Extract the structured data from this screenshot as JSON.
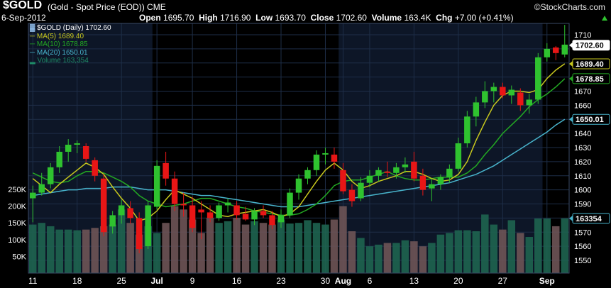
{
  "header": {
    "symbol": "$GOLD",
    "description": "(Gold - Spot Price (EOD)) CME",
    "watermark": "©StockCharts.com",
    "date": "6-Sep-2012",
    "open_label": "Open",
    "open": "1695.70",
    "high_label": "High",
    "high": "1716.90",
    "low_label": "Low",
    "low": "1693.70",
    "close_label": "Close",
    "close": "1702.60",
    "volume_label": "Volume",
    "volume": "163.4K",
    "chg_label": "Chg",
    "chg": "+7.00 (+0.41%)"
  },
  "legend": {
    "price": "$GOLD (Daily) 1702.60",
    "ma5": "MA(5) 1689.40",
    "ma10": "MA(10) 1678.85",
    "ma20": "MA(20) 1650.01",
    "volume": "Volume 163,354"
  },
  "colors": {
    "up": "#2fc22f",
    "down": "#e81616",
    "ma5": "#c8c81e",
    "ma10": "#23a823",
    "ma20": "#48b4cc",
    "volume_up": "#1e6450",
    "volume_down": "#6e5456",
    "grid": "#1e2e48",
    "panel_light": "#0d1627",
    "panel_dark": "#000000"
  },
  "chart_data": {
    "type": "candlestick",
    "price_axis": {
      "range": [
        1545,
        1720
      ],
      "ticks": [
        1550,
        1560,
        1570,
        1580,
        1590,
        1600,
        1610,
        1620,
        1630,
        1640,
        1650,
        1660,
        1670,
        1680,
        1690,
        1700,
        1710
      ]
    },
    "volume_axis": {
      "range": [
        0,
        300000
      ],
      "ticks": [
        "50K",
        "100K",
        "150K",
        "200K",
        "250K"
      ],
      "tick_values": [
        50000,
        100000,
        150000,
        200000,
        250000
      ]
    },
    "x_axis": {
      "ticks": [
        {
          "label": "11",
          "i": 0
        },
        {
          "label": "18",
          "i": 5
        },
        {
          "label": "25",
          "i": 10
        },
        {
          "label": "Jul",
          "i": 14
        },
        {
          "label": "9",
          "i": 18
        },
        {
          "label": "16",
          "i": 23
        },
        {
          "label": "23",
          "i": 28
        },
        {
          "label": "30",
          "i": 33
        },
        {
          "label": "Aug",
          "i": 35
        },
        {
          "label": "6",
          "i": 38
        },
        {
          "label": "13",
          "i": 43
        },
        {
          "label": "20",
          "i": 48
        },
        {
          "label": "27",
          "i": 53
        },
        {
          "label": "Sep",
          "i": 58
        }
      ]
    },
    "badges": [
      {
        "text": "1702.60",
        "value": 1702.6,
        "color": "#ffffff",
        "fill": "#ffffff",
        "textcolor": "#000000"
      },
      {
        "text": "1689.40",
        "value": 1689.4,
        "color": "#c8c81e",
        "fill": "#000000",
        "textcolor": "#ffffff"
      },
      {
        "text": "1678.85",
        "value": 1678.85,
        "color": "#23a823",
        "fill": "#000000",
        "textcolor": "#ffffff"
      },
      {
        "text": "1650.01",
        "value": 1650.01,
        "color": "#48b4cc",
        "fill": "#000000",
        "textcolor": "#ffffff"
      },
      {
        "text": "163354",
        "value": 163354,
        "color": "#48b4cc",
        "fill": "#000000",
        "textcolor": "#ffffff",
        "axis": "volume"
      }
    ],
    "candles": [
      {
        "o": 1594,
        "h": 1603,
        "l": 1577,
        "c": 1598
      },
      {
        "o": 1598,
        "h": 1612,
        "l": 1596,
        "c": 1604
      },
      {
        "o": 1604,
        "h": 1619,
        "l": 1601,
        "c": 1616
      },
      {
        "o": 1616,
        "h": 1631,
        "l": 1612,
        "c": 1627
      },
      {
        "o": 1627,
        "h": 1636,
        "l": 1620,
        "c": 1632
      },
      {
        "o": 1632,
        "h": 1635,
        "l": 1626,
        "c": 1633
      },
      {
        "o": 1631,
        "h": 1633,
        "l": 1620,
        "c": 1622
      },
      {
        "o": 1621,
        "h": 1623,
        "l": 1606,
        "c": 1610
      },
      {
        "o": 1608,
        "h": 1611,
        "l": 1567,
        "c": 1570
      },
      {
        "o": 1574,
        "h": 1585,
        "l": 1569,
        "c": 1582
      },
      {
        "o": 1582,
        "h": 1593,
        "l": 1576,
        "c": 1589
      },
      {
        "o": 1587,
        "h": 1592,
        "l": 1576,
        "c": 1580
      },
      {
        "o": 1580,
        "h": 1584,
        "l": 1555,
        "c": 1558
      },
      {
        "o": 1560,
        "h": 1592,
        "l": 1558,
        "c": 1589
      },
      {
        "o": 1588,
        "h": 1621,
        "l": 1586,
        "c": 1617
      },
      {
        "o": 1619,
        "h": 1627,
        "l": 1603,
        "c": 1608
      },
      {
        "o": 1608,
        "h": 1613,
        "l": 1585,
        "c": 1590
      },
      {
        "o": 1590,
        "h": 1598,
        "l": 1581,
        "c": 1589
      },
      {
        "o": 1589,
        "h": 1595,
        "l": 1570,
        "c": 1573
      },
      {
        "o": 1586,
        "h": 1592,
        "l": 1565,
        "c": 1584
      },
      {
        "o": 1584,
        "h": 1589,
        "l": 1577,
        "c": 1580
      },
      {
        "o": 1580,
        "h": 1591,
        "l": 1578,
        "c": 1589
      },
      {
        "o": 1589,
        "h": 1594,
        "l": 1584,
        "c": 1591
      },
      {
        "o": 1589,
        "h": 1592,
        "l": 1579,
        "c": 1582
      },
      {
        "o": 1583,
        "h": 1588,
        "l": 1578,
        "c": 1579
      },
      {
        "o": 1579,
        "h": 1587,
        "l": 1575,
        "c": 1585
      },
      {
        "o": 1585,
        "h": 1589,
        "l": 1580,
        "c": 1582
      },
      {
        "o": 1582,
        "h": 1585,
        "l": 1572,
        "c": 1575
      },
      {
        "o": 1577,
        "h": 1586,
        "l": 1573,
        "c": 1582
      },
      {
        "o": 1582,
        "h": 1601,
        "l": 1580,
        "c": 1598
      },
      {
        "o": 1598,
        "h": 1611,
        "l": 1593,
        "c": 1608
      },
      {
        "o": 1608,
        "h": 1616,
        "l": 1604,
        "c": 1614
      },
      {
        "o": 1614,
        "h": 1628,
        "l": 1610,
        "c": 1625
      },
      {
        "o": 1625,
        "h": 1630,
        "l": 1618,
        "c": 1626
      },
      {
        "o": 1625,
        "h": 1630,
        "l": 1615,
        "c": 1620
      },
      {
        "o": 1614,
        "h": 1619,
        "l": 1597,
        "c": 1599
      },
      {
        "o": 1600,
        "h": 1604,
        "l": 1588,
        "c": 1592
      },
      {
        "o": 1594,
        "h": 1609,
        "l": 1592,
        "c": 1605
      },
      {
        "o": 1605,
        "h": 1614,
        "l": 1602,
        "c": 1610
      },
      {
        "o": 1610,
        "h": 1616,
        "l": 1606,
        "c": 1614
      },
      {
        "o": 1613,
        "h": 1620,
        "l": 1609,
        "c": 1612
      },
      {
        "o": 1612,
        "h": 1619,
        "l": 1608,
        "c": 1616
      },
      {
        "o": 1616,
        "h": 1623,
        "l": 1612,
        "c": 1618
      },
      {
        "o": 1620,
        "h": 1627,
        "l": 1606,
        "c": 1608
      },
      {
        "o": 1610,
        "h": 1615,
        "l": 1596,
        "c": 1600
      },
      {
        "o": 1601,
        "h": 1608,
        "l": 1592,
        "c": 1604
      },
      {
        "o": 1604,
        "h": 1611,
        "l": 1600,
        "c": 1609
      },
      {
        "o": 1609,
        "h": 1618,
        "l": 1605,
        "c": 1615
      },
      {
        "o": 1615,
        "h": 1637,
        "l": 1613,
        "c": 1633
      },
      {
        "o": 1633,
        "h": 1656,
        "l": 1630,
        "c": 1652
      },
      {
        "o": 1652,
        "h": 1666,
        "l": 1645,
        "c": 1662
      },
      {
        "o": 1662,
        "h": 1677,
        "l": 1658,
        "c": 1670
      },
      {
        "o": 1670,
        "h": 1676,
        "l": 1662,
        "c": 1673
      },
      {
        "o": 1673,
        "h": 1676,
        "l": 1665,
        "c": 1667
      },
      {
        "o": 1667,
        "h": 1674,
        "l": 1661,
        "c": 1671
      },
      {
        "o": 1669,
        "h": 1672,
        "l": 1656,
        "c": 1660
      },
      {
        "o": 1660,
        "h": 1668,
        "l": 1654,
        "c": 1664
      },
      {
        "o": 1664,
        "h": 1697,
        "l": 1661,
        "c": 1694
      },
      {
        "o": 1694,
        "h": 1704,
        "l": 1691,
        "c": 1700
      },
      {
        "o": 1701,
        "h": 1702,
        "l": 1692,
        "c": 1697
      },
      {
        "o": 1696,
        "h": 1717,
        "l": 1694,
        "c": 1703
      }
    ],
    "ma5": [
      1608,
      1603,
      1598,
      1604,
      1609,
      1614,
      1619,
      1616,
      1611,
      1602,
      1594,
      1587,
      1578,
      1580,
      1585,
      1593,
      1600,
      1597,
      1594,
      1590,
      1586,
      1582,
      1581,
      1583,
      1584,
      1585,
      1586,
      1584,
      1581,
      1583,
      1588,
      1597,
      1606,
      1614,
      1619,
      1614,
      1606,
      1601,
      1603,
      1606,
      1608,
      1610,
      1613,
      1613,
      1611,
      1608,
      1606,
      1607,
      1611,
      1620,
      1635,
      1648,
      1660,
      1667,
      1670,
      1670,
      1669,
      1671,
      1679,
      1685,
      1689.4
    ],
    "ma10": [
      1612,
      1609,
      1606,
      1605,
      1606,
      1610,
      1613,
      1613,
      1612,
      1609,
      1606,
      1602,
      1596,
      1592,
      1590,
      1588,
      1589,
      1590,
      1592,
      1594,
      1594,
      1592,
      1590,
      1588,
      1587,
      1585,
      1584,
      1583,
      1582,
      1582,
      1583,
      1586,
      1590,
      1596,
      1603,
      1606,
      1607,
      1607,
      1609,
      1611,
      1613,
      1610,
      1608,
      1607,
      1607,
      1608,
      1609,
      1609,
      1609,
      1612,
      1617,
      1625,
      1632,
      1640,
      1646,
      1652,
      1659,
      1664,
      1668,
      1673,
      1678.85
    ],
    "ma20": [
      1596,
      1597,
      1598,
      1599,
      1600,
      1600,
      1601,
      1601,
      1601,
      1602,
      1602,
      1602,
      1601,
      1600,
      1600,
      1600,
      1599,
      1598,
      1597,
      1596,
      1596,
      1595,
      1594,
      1593,
      1592,
      1591,
      1590,
      1589,
      1588,
      1588,
      1588,
      1589,
      1590,
      1591,
      1592,
      1593,
      1594,
      1595,
      1596,
      1597,
      1598,
      1599,
      1600,
      1601,
      1602,
      1603,
      1604,
      1605,
      1607,
      1609,
      1611,
      1614,
      1617,
      1621,
      1625,
      1629,
      1633,
      1637,
      1641,
      1646,
      1650.01
    ],
    "volume": [
      145000,
      150000,
      140000,
      130000,
      130000,
      128000,
      130000,
      135000,
      140000,
      145000,
      190000,
      150000,
      115000,
      140000,
      120000,
      150000,
      200000,
      190000,
      160000,
      120000,
      165000,
      150000,
      155000,
      165000,
      145000,
      155000,
      150000,
      145000,
      160000,
      148000,
      150000,
      158000,
      150000,
      145000,
      160000,
      200000,
      125000,
      105000,
      80000,
      85000,
      90000,
      90000,
      98000,
      95000,
      80000,
      90000,
      115000,
      120000,
      128000,
      128000,
      125000,
      175000,
      145000,
      130000,
      158000,
      120000,
      108000,
      163000,
      163000,
      140000,
      163354
    ]
  }
}
